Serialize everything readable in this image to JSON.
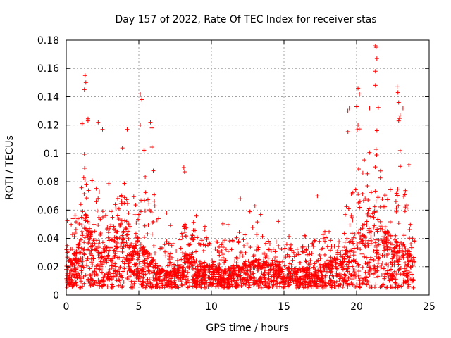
{
  "chart_data": {
    "type": "scatter",
    "title": "Day 157 of 2022, Rate Of TEC Index for receiver stas",
    "xlabel": "GPS time / hours",
    "ylabel": "ROTI / TECUs",
    "xlim": [
      0,
      25
    ],
    "ylim": [
      0,
      0.18
    ],
    "xticks": [
      0,
      5,
      10,
      15,
      20,
      25
    ],
    "yticks": [
      0,
      0.02,
      0.04,
      0.06,
      0.08,
      0.1,
      0.12,
      0.14,
      0.16,
      0.18
    ],
    "xtick_labels": [
      "0",
      "5",
      "10",
      "15",
      "20",
      "25"
    ],
    "ytick_labels": [
      "0",
      "0.02",
      "0.04",
      "0.06",
      "0.08",
      "0.1",
      "0.12",
      "0.14",
      "0.16",
      "0.18"
    ],
    "grid": true,
    "marker": "+",
    "color": "#ff0000",
    "envelope": {
      "x_hours": [
        0,
        0.5,
        1.0,
        1.3,
        1.6,
        2.0,
        2.5,
        3.0,
        3.5,
        4.0,
        4.5,
        5.0,
        5.5,
        6.0,
        6.5,
        7.0,
        8.0,
        8.3,
        9.0,
        10.0,
        11.0,
        12.0,
        13.0,
        14.0,
        15.0,
        16.0,
        17.0,
        18.0,
        19.0,
        19.5,
        20.0,
        20.5,
        21.0,
        21.3,
        21.7,
        22.0,
        22.5,
        23.0,
        23.5,
        24.0
      ],
      "typical_roti": [
        0.018,
        0.022,
        0.03,
        0.045,
        0.035,
        0.03,
        0.025,
        0.028,
        0.035,
        0.04,
        0.025,
        0.03,
        0.025,
        0.02,
        0.015,
        0.013,
        0.018,
        0.025,
        0.018,
        0.016,
        0.015,
        0.017,
        0.02,
        0.018,
        0.015,
        0.015,
        0.016,
        0.018,
        0.022,
        0.028,
        0.035,
        0.038,
        0.045,
        0.05,
        0.04,
        0.035,
        0.03,
        0.03,
        0.025,
        0.02
      ],
      "peak_roti": [
        0.055,
        0.085,
        0.125,
        0.155,
        0.11,
        0.12,
        0.095,
        0.085,
        0.095,
        0.115,
        0.07,
        0.142,
        0.1,
        0.12,
        0.075,
        0.055,
        0.07,
        0.09,
        0.065,
        0.06,
        0.055,
        0.068,
        0.063,
        0.055,
        0.055,
        0.05,
        0.055,
        0.07,
        0.06,
        0.13,
        0.147,
        0.125,
        0.1,
        0.176,
        0.12,
        0.1,
        0.09,
        0.147,
        0.092,
        0.06
      ]
    },
    "highlight_points": [
      {
        "x": 1.3,
        "y": 0.155
      },
      {
        "x": 1.35,
        "y": 0.15
      },
      {
        "x": 1.25,
        "y": 0.145
      },
      {
        "x": 1.1,
        "y": 0.121
      },
      {
        "x": 1.5,
        "y": 0.123
      },
      {
        "x": 2.2,
        "y": 0.122
      },
      {
        "x": 2.5,
        "y": 0.117
      },
      {
        "x": 4.2,
        "y": 0.117
      },
      {
        "x": 5.1,
        "y": 0.142
      },
      {
        "x": 5.2,
        "y": 0.138
      },
      {
        "x": 5.1,
        "y": 0.12
      },
      {
        "x": 5.8,
        "y": 0.122
      },
      {
        "x": 5.9,
        "y": 0.118
      },
      {
        "x": 8.1,
        "y": 0.09
      },
      {
        "x": 8.15,
        "y": 0.087
      },
      {
        "x": 12.0,
        "y": 0.068
      },
      {
        "x": 13.0,
        "y": 0.063
      },
      {
        "x": 17.3,
        "y": 0.07
      },
      {
        "x": 19.4,
        "y": 0.13
      },
      {
        "x": 19.5,
        "y": 0.132
      },
      {
        "x": 20.1,
        "y": 0.146
      },
      {
        "x": 20.2,
        "y": 0.142
      },
      {
        "x": 20.0,
        "y": 0.133
      },
      {
        "x": 20.1,
        "y": 0.12
      },
      {
        "x": 20.9,
        "y": 0.132
      },
      {
        "x": 21.3,
        "y": 0.176
      },
      {
        "x": 21.35,
        "y": 0.175
      },
      {
        "x": 21.4,
        "y": 0.167
      },
      {
        "x": 21.3,
        "y": 0.158
      },
      {
        "x": 21.3,
        "y": 0.148
      },
      {
        "x": 22.8,
        "y": 0.147
      },
      {
        "x": 22.85,
        "y": 0.143
      },
      {
        "x": 22.9,
        "y": 0.136
      },
      {
        "x": 23.2,
        "y": 0.132
      },
      {
        "x": 23.0,
        "y": 0.127
      },
      {
        "x": 22.9,
        "y": 0.123
      },
      {
        "x": 23.0,
        "y": 0.102
      },
      {
        "x": 23.6,
        "y": 0.092
      }
    ]
  }
}
